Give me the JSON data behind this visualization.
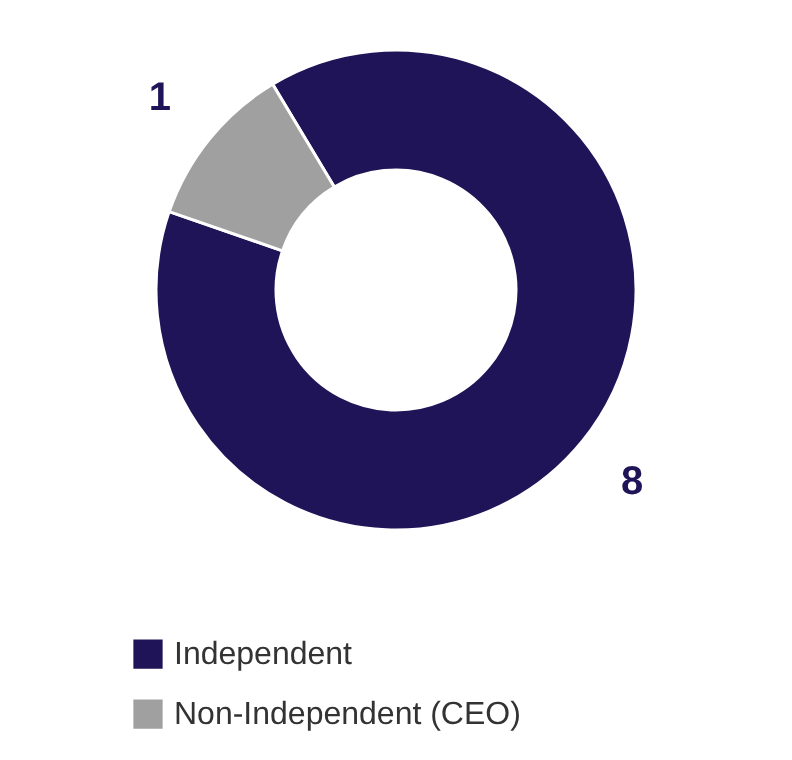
{
  "chart_data": {
    "type": "donut",
    "categories": [
      "Independent",
      "Non-Independent (CEO)"
    ],
    "values": [
      8,
      1
    ],
    "colors": [
      "#1f1457",
      "#a0a0a0"
    ],
    "data_labels": true,
    "legend": "bottom"
  }
}
